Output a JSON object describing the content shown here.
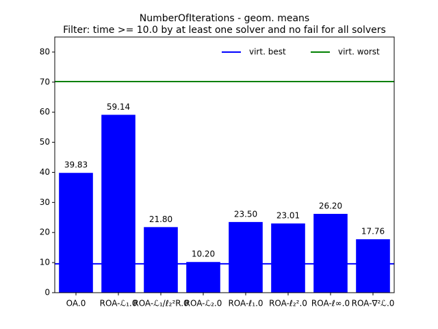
{
  "chart_data": {
    "type": "bar",
    "title": "NumberOfIterations - geom. means",
    "subtitle": "Filter: time >= 10.0 by at least one solver and no fail for all solvers",
    "categories": [
      "OA.0",
      "ROA-ℒ₁.0",
      "ROA-ℒ₁/ℓ₂²R.0",
      "ROA-ℒ₂.0",
      "ROA-ℓ₁.0",
      "ROA-ℓ₂².0",
      "ROA-ℓ∞.0",
      "ROA-∇²ℒ.0"
    ],
    "values": [
      39.83,
      59.14,
      21.8,
      10.2,
      23.5,
      23.01,
      26.2,
      17.76
    ],
    "value_labels": [
      "39.83",
      "59.14",
      "21.80",
      "10.20",
      "23.50",
      "23.01",
      "26.20",
      "17.76"
    ],
    "color": "#0000ff",
    "series": [
      {
        "name": "virt. best",
        "color": "#0000ff",
        "value": 9.6
      },
      {
        "name": "virt. worst",
        "color": "#008000",
        "value": 70.2
      }
    ],
    "legend": "upper right",
    "ylim": [
      0,
      85
    ],
    "yticks": [
      0,
      10,
      20,
      30,
      40,
      50,
      60,
      70,
      80
    ]
  }
}
